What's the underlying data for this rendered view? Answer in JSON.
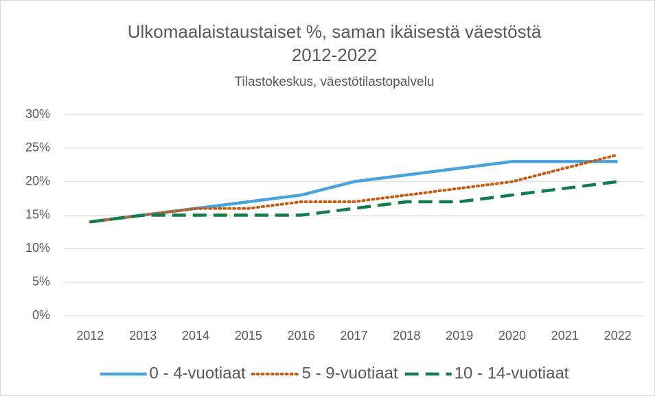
{
  "chart_data": {
    "type": "line",
    "title": [
      "Ulkomaalaistaustaiset %, saman ikäisestä väestöstä",
      "2012-2022"
    ],
    "subtitle": "Tilastokeskus, väestötilastopalvelu",
    "categories": [
      "2012",
      "2013",
      "2014",
      "2015",
      "2016",
      "2017",
      "2018",
      "2019",
      "2020",
      "2021",
      "2022"
    ],
    "series": [
      {
        "name": "0 - 4-vuotiaat",
        "color": "#4ba3dd",
        "dash": "solid",
        "values": [
          14,
          15,
          16,
          17,
          18,
          20,
          21,
          22,
          23,
          23,
          23
        ]
      },
      {
        "name": "5 - 9-vuotiaat",
        "color": "#c55a11",
        "dash": "dot",
        "values": [
          14,
          15,
          16,
          16,
          17,
          17,
          18,
          19,
          20,
          22,
          24
        ]
      },
      {
        "name": "10 - 14-vuotiaat",
        "color": "#157a4c",
        "dash": "dash",
        "values": [
          14,
          15,
          15,
          15,
          15,
          16,
          17,
          17,
          18,
          19,
          20
        ]
      }
    ],
    "ylim": [
      0,
      30
    ],
    "yticks": [
      {
        "value": 0,
        "label": "0%"
      },
      {
        "value": 5,
        "label": "5%"
      },
      {
        "value": 10,
        "label": "10%"
      },
      {
        "value": 15,
        "label": "15%"
      },
      {
        "value": 20,
        "label": "20%"
      },
      {
        "value": 25,
        "label": "25%"
      },
      {
        "value": 30,
        "label": "30%"
      }
    ],
    "grid": true,
    "legend": "bottom"
  }
}
